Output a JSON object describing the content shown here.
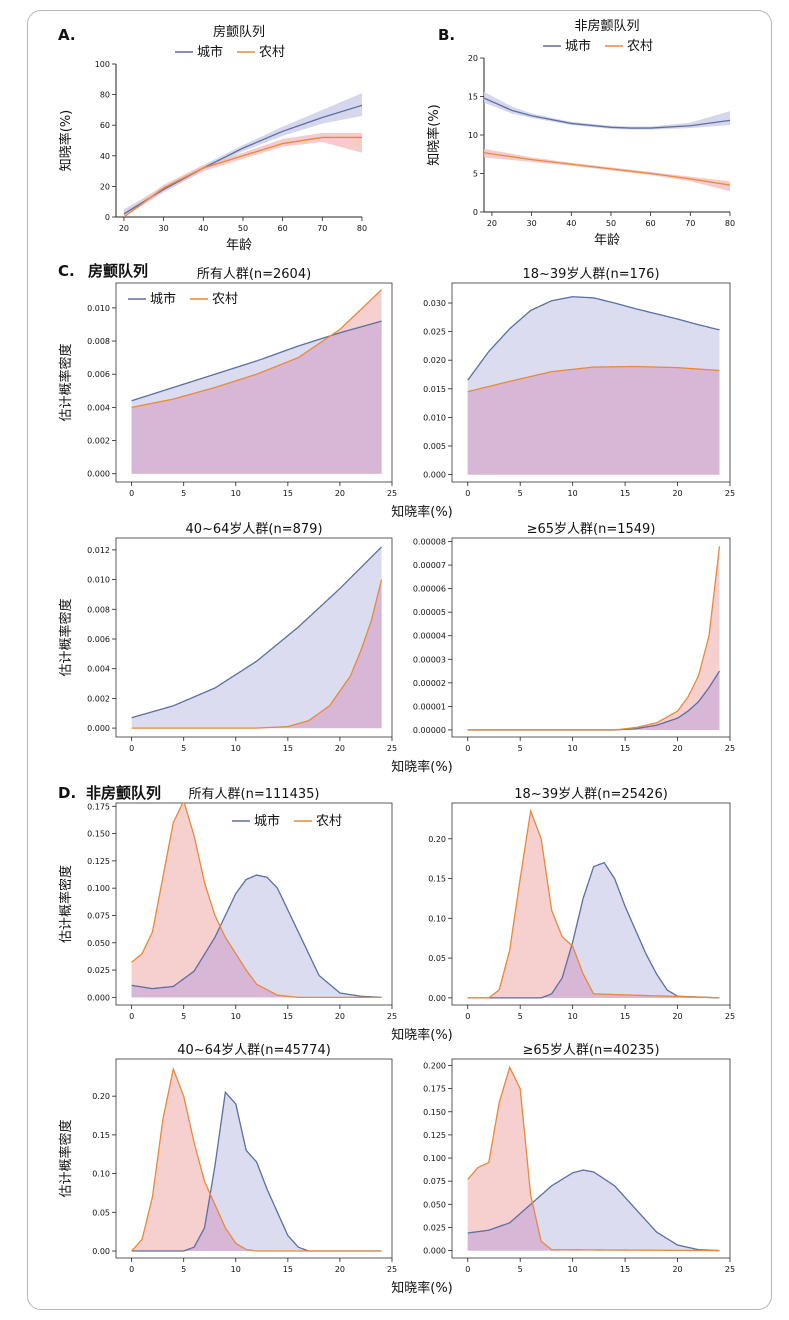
{
  "panel_labels": {
    "A": "A.",
    "B": "B.",
    "C": "C.",
    "D": "D.",
    "C_cohort": "房颤队列",
    "D_cohort": "非房颤队列"
  },
  "colors": {
    "urban": "#5b6fa3",
    "rural": "#e8893c",
    "urban_fill": "#dcdcf0",
    "rural_fill": "#f6cfcf",
    "overlap_fill": "#d8b6d6",
    "urban_band": "#cfd0ea",
    "rural_band": "#f3c2c2"
  },
  "chart_data": [
    {
      "id": "A",
      "type": "line",
      "title": "房颤队列",
      "xlabel": "年龄",
      "ylabel": "知晓率(%)",
      "xlim": [
        18,
        80
      ],
      "ylim": [
        0,
        100
      ],
      "xticks": [
        20,
        30,
        40,
        50,
        60,
        70,
        80
      ],
      "yticks": [
        0,
        20,
        40,
        60,
        80,
        100
      ],
      "legend": [
        "城市",
        "农村"
      ],
      "legend_position": "top",
      "series": [
        {
          "name": "城市",
          "x": [
            20,
            30,
            40,
            50,
            60,
            70,
            80
          ],
          "y": [
            2,
            18,
            32,
            45,
            56,
            65,
            73
          ],
          "ci": [
            [
              0,
              5
            ],
            [
              16,
              20
            ],
            [
              30,
              34
            ],
            [
              43,
              47
            ],
            [
              53,
              59
            ],
            [
              61,
              70
            ],
            [
              66,
              81
            ]
          ]
        },
        {
          "name": "农村",
          "x": [
            20,
            30,
            40,
            50,
            60,
            70,
            80
          ],
          "y": [
            0,
            19,
            32,
            40,
            48,
            52,
            52
          ],
          "ci": [
            [
              0,
              3
            ],
            [
              17,
              21
            ],
            [
              30,
              34
            ],
            [
              38,
              42
            ],
            [
              46,
              51
            ],
            [
              49,
              55
            ],
            [
              42,
              55
            ]
          ]
        }
      ]
    },
    {
      "id": "B",
      "type": "line",
      "title": "非房颤队列",
      "xlabel": "年龄",
      "ylabel": "知晓率(%)",
      "xlim": [
        18,
        80
      ],
      "ylim": [
        0,
        20
      ],
      "xticks": [
        20,
        30,
        40,
        50,
        60,
        70,
        80
      ],
      "yticks": [
        0,
        5,
        10,
        15,
        20
      ],
      "legend": [
        "城市",
        "农村"
      ],
      "legend_position": "top",
      "series": [
        {
          "name": "城市",
          "x": [
            18,
            25,
            30,
            40,
            50,
            55,
            60,
            70,
            80
          ],
          "y": [
            14.8,
            13.2,
            12.5,
            11.5,
            11.0,
            10.9,
            10.9,
            11.2,
            11.9
          ],
          "ci": [
            [
              14.2,
              15.6
            ],
            [
              12.8,
              13.7
            ],
            [
              12.2,
              12.8
            ],
            [
              11.3,
              11.7
            ],
            [
              10.8,
              11.2
            ],
            [
              10.7,
              11.1
            ],
            [
              10.7,
              11.1
            ],
            [
              10.9,
              11.6
            ],
            [
              11.3,
              13.1
            ]
          ]
        },
        {
          "name": "农村",
          "x": [
            18,
            30,
            40,
            50,
            60,
            70,
            80
          ],
          "y": [
            7.7,
            6.8,
            6.2,
            5.6,
            5.0,
            4.3,
            3.5
          ],
          "ci": [
            [
              7.1,
              8.2
            ],
            [
              6.5,
              7.1
            ],
            [
              6.0,
              6.4
            ],
            [
              5.4,
              5.8
            ],
            [
              4.8,
              5.2
            ],
            [
              4.0,
              4.6
            ],
            [
              2.7,
              4.0
            ]
          ]
        }
      ]
    },
    {
      "id": "C1",
      "type": "area",
      "title": "所有人群(n=2604)",
      "xlabel": "",
      "ylabel": "估计概率密度",
      "xlim": [
        -1.5,
        25
      ],
      "ylim": [
        -0.0005,
        0.0115
      ],
      "xticks": [
        0,
        5,
        10,
        15,
        20,
        25
      ],
      "yticks": [
        0.0,
        0.002,
        0.004,
        0.006,
        0.008,
        0.01
      ],
      "ytick_labels": [
        "0.000",
        "0.002",
        "0.004",
        "0.006",
        "0.008",
        "0.010"
      ],
      "legend": [
        "城市",
        "农村"
      ],
      "legend_position": "top-left",
      "series": [
        {
          "name": "城市",
          "x": [
            0,
            4,
            8,
            12,
            16,
            20,
            24
          ],
          "y": [
            0.0044,
            0.0052,
            0.006,
            0.0068,
            0.0077,
            0.0085,
            0.0092
          ]
        },
        {
          "name": "农村",
          "x": [
            0,
            4,
            8,
            12,
            16,
            20,
            24
          ],
          "y": [
            0.004,
            0.0045,
            0.0052,
            0.006,
            0.007,
            0.0087,
            0.0111
          ]
        }
      ]
    },
    {
      "id": "C2",
      "type": "area",
      "title": "18~39岁人群(n=176)",
      "xlabel": "知晓率(%)",
      "ylabel": "",
      "xlim": [
        -1.5,
        25
      ],
      "ylim": [
        -0.0013,
        0.0335
      ],
      "xticks": [
        0,
        5,
        10,
        15,
        20,
        25
      ],
      "yticks": [
        0.0,
        0.005,
        0.01,
        0.015,
        0.02,
        0.025,
        0.03
      ],
      "ytick_labels": [
        "0.000",
        "0.005",
        "0.010",
        "0.015",
        "0.020",
        "0.025",
        "0.030"
      ],
      "series": [
        {
          "name": "城市",
          "x": [
            0,
            2,
            4,
            6,
            8,
            10,
            12,
            14,
            16,
            18,
            20,
            22,
            24
          ],
          "y": [
            0.0165,
            0.0215,
            0.0255,
            0.0287,
            0.0304,
            0.0311,
            0.0309,
            0.03,
            0.029,
            0.0281,
            0.0272,
            0.0262,
            0.0253
          ]
        },
        {
          "name": "农村",
          "x": [
            0,
            4,
            8,
            12,
            16,
            20,
            24
          ],
          "y": [
            0.0145,
            0.0163,
            0.018,
            0.0188,
            0.0189,
            0.0187,
            0.0182
          ]
        }
      ]
    },
    {
      "id": "C3",
      "type": "area",
      "title": "40~64岁人群(n=879)",
      "xlabel": "",
      "ylabel": "估计概率密度",
      "xlim": [
        -1.5,
        25
      ],
      "ylim": [
        -0.0006,
        0.0128
      ],
      "xticks": [
        0,
        5,
        10,
        15,
        20,
        25
      ],
      "yticks": [
        0.0,
        0.002,
        0.004,
        0.006,
        0.008,
        0.01,
        0.012
      ],
      "ytick_labels": [
        "0.000",
        "0.002",
        "0.004",
        "0.006",
        "0.008",
        "0.010",
        "0.012"
      ],
      "series": [
        {
          "name": "城市",
          "x": [
            0,
            4,
            8,
            12,
            16,
            20,
            24
          ],
          "y": [
            0.0007,
            0.0015,
            0.0027,
            0.0045,
            0.0068,
            0.0094,
            0.0122
          ]
        },
        {
          "name": "农村",
          "x": [
            0,
            12,
            15,
            17,
            19,
            21,
            22,
            23,
            24
          ],
          "y": [
            0.0,
            0.0,
            0.0001,
            0.0005,
            0.0015,
            0.0035,
            0.0052,
            0.0072,
            0.01
          ]
        }
      ]
    },
    {
      "id": "C4",
      "type": "area",
      "title": "≥65岁人群(n=1549)",
      "xlabel": "知晓率(%)",
      "ylabel": "",
      "xlim": [
        -1.5,
        25
      ],
      "ylim": [
        -3e-06,
        8.15e-05
      ],
      "xticks": [
        0,
        5,
        10,
        15,
        20,
        25
      ],
      "yticks": [
        0.0,
        1e-05,
        2e-05,
        3e-05,
        4e-05,
        5e-05,
        6e-05,
        7e-05,
        8e-05
      ],
      "ytick_labels": [
        "0.00000",
        "0.00001",
        "0.00002",
        "0.00003",
        "0.00004",
        "0.00005",
        "0.00006",
        "0.00007",
        "0.00008"
      ],
      "series": [
        {
          "name": "城市",
          "x": [
            0,
            14,
            16,
            18,
            20,
            21,
            22,
            23,
            24
          ],
          "y": [
            0.0,
            0.0,
            5e-07,
            2e-06,
            5e-06,
            8e-06,
            1.2e-05,
            1.8e-05,
            2.5e-05
          ]
        },
        {
          "name": "农村",
          "x": [
            0,
            14,
            16,
            18,
            20,
            21,
            22,
            23,
            24
          ],
          "y": [
            0.0,
            0.0,
            1e-06,
            3e-06,
            8e-06,
            1.4e-05,
            2.3e-05,
            4e-05,
            7.8e-05
          ]
        }
      ]
    },
    {
      "id": "D1",
      "type": "area",
      "title": "所有人群(n=111435)",
      "xlabel": "",
      "ylabel": "估计概率密度",
      "xlim": [
        -1.5,
        25
      ],
      "ylim": [
        -0.007,
        0.178
      ],
      "xticks": [
        0,
        5,
        10,
        15,
        20,
        25
      ],
      "yticks": [
        0.0,
        0.025,
        0.05,
        0.075,
        0.1,
        0.125,
        0.15,
        0.175
      ],
      "ytick_labels": [
        "0.000",
        "0.025",
        "0.050",
        "0.075",
        "0.100",
        "0.125",
        "0.150",
        "0.175"
      ],
      "legend": [
        "城市",
        "农村"
      ],
      "legend_position": "top-right",
      "series": [
        {
          "name": "城市",
          "x": [
            0,
            2,
            4,
            6,
            8,
            10,
            11,
            12,
            13,
            14,
            16,
            18,
            20,
            22,
            24
          ],
          "y": [
            0.011,
            0.008,
            0.01,
            0.024,
            0.055,
            0.095,
            0.108,
            0.112,
            0.11,
            0.1,
            0.06,
            0.02,
            0.004,
            0.001,
            0.0
          ]
        },
        {
          "name": "农村",
          "x": [
            0,
            1,
            2,
            3,
            4,
            5,
            6,
            7,
            8,
            9,
            10,
            11,
            12,
            14,
            16,
            24
          ],
          "y": [
            0.032,
            0.04,
            0.06,
            0.11,
            0.16,
            0.18,
            0.148,
            0.105,
            0.075,
            0.055,
            0.04,
            0.025,
            0.012,
            0.002,
            0.0,
            0.0
          ]
        }
      ]
    },
    {
      "id": "D2",
      "type": "area",
      "title": "18~39岁人群(n=25426)",
      "xlabel": "知晓率(%)",
      "ylabel": "",
      "xlim": [
        -1.5,
        25
      ],
      "ylim": [
        -0.009,
        0.245
      ],
      "xticks": [
        0,
        5,
        10,
        15,
        20,
        25
      ],
      "yticks": [
        0.0,
        0.05,
        0.1,
        0.15,
        0.2
      ],
      "ytick_labels": [
        "0.00",
        "0.05",
        "0.10",
        "0.15",
        "0.20"
      ],
      "series": [
        {
          "name": "城市",
          "x": [
            0,
            7,
            8,
            9,
            10,
            11,
            12,
            13,
            14,
            15,
            16,
            17,
            18,
            19,
            20,
            24
          ],
          "y": [
            0.0,
            0.0,
            0.005,
            0.025,
            0.07,
            0.125,
            0.165,
            0.17,
            0.15,
            0.115,
            0.085,
            0.055,
            0.03,
            0.01,
            0.002,
            0.0
          ]
        },
        {
          "name": "农村",
          "x": [
            0,
            2,
            3,
            4,
            5,
            6,
            7,
            8,
            9,
            10,
            11,
            12,
            24
          ],
          "y": [
            0.0,
            0.0,
            0.01,
            0.06,
            0.15,
            0.235,
            0.2,
            0.11,
            0.077,
            0.065,
            0.03,
            0.005,
            0.0
          ]
        }
      ]
    },
    {
      "id": "D3",
      "type": "area",
      "title": "40~64岁人群(n=45774)",
      "xlabel": "",
      "ylabel": "估计概率密度",
      "xlim": [
        -1.5,
        25
      ],
      "ylim": [
        -0.009,
        0.248
      ],
      "xticks": [
        0,
        5,
        10,
        15,
        20,
        25
      ],
      "yticks": [
        0.0,
        0.05,
        0.1,
        0.15,
        0.2
      ],
      "ytick_labels": [
        "0.00",
        "0.05",
        "0.10",
        "0.15",
        "0.20"
      ],
      "series": [
        {
          "name": "城市",
          "x": [
            0,
            5,
            6,
            7,
            8,
            9,
            10,
            11,
            12,
            13,
            14,
            15,
            16,
            17,
            24
          ],
          "y": [
            0.0,
            0.0,
            0.005,
            0.03,
            0.11,
            0.205,
            0.19,
            0.13,
            0.115,
            0.08,
            0.05,
            0.02,
            0.005,
            0.0,
            0.0
          ]
        },
        {
          "name": "农村",
          "x": [
            0,
            1,
            2,
            3,
            4,
            5,
            6,
            7,
            8,
            9,
            10,
            11,
            12,
            24
          ],
          "y": [
            0.0,
            0.015,
            0.07,
            0.17,
            0.235,
            0.2,
            0.14,
            0.09,
            0.06,
            0.03,
            0.01,
            0.002,
            0.0,
            0.0
          ]
        }
      ]
    },
    {
      "id": "D4",
      "type": "area",
      "title": "≥65岁人群(n=40235)",
      "xlabel": "知晓率(%)",
      "ylabel": "",
      "xlim": [
        -1.5,
        25
      ],
      "ylim": [
        -0.008,
        0.207
      ],
      "xticks": [
        0,
        5,
        10,
        15,
        20,
        25
      ],
      "yticks": [
        0.0,
        0.025,
        0.05,
        0.075,
        0.1,
        0.125,
        0.15,
        0.175,
        0.2
      ],
      "ytick_labels": [
        "0.000",
        "0.025",
        "0.050",
        "0.075",
        "0.100",
        "0.125",
        "0.150",
        "0.175",
        "0.200"
      ],
      "series": [
        {
          "name": "城市",
          "x": [
            0,
            2,
            4,
            6,
            8,
            10,
            11,
            12,
            14,
            16,
            18,
            20,
            22,
            24
          ],
          "y": [
            0.019,
            0.022,
            0.03,
            0.05,
            0.07,
            0.084,
            0.087,
            0.085,
            0.07,
            0.045,
            0.02,
            0.006,
            0.001,
            0.0
          ]
        },
        {
          "name": "农村",
          "x": [
            0,
            1,
            2,
            3,
            4,
            5,
            6,
            7,
            8,
            24
          ],
          "y": [
            0.077,
            0.09,
            0.095,
            0.16,
            0.198,
            0.175,
            0.06,
            0.01,
            0.001,
            0.0
          ]
        }
      ]
    }
  ]
}
